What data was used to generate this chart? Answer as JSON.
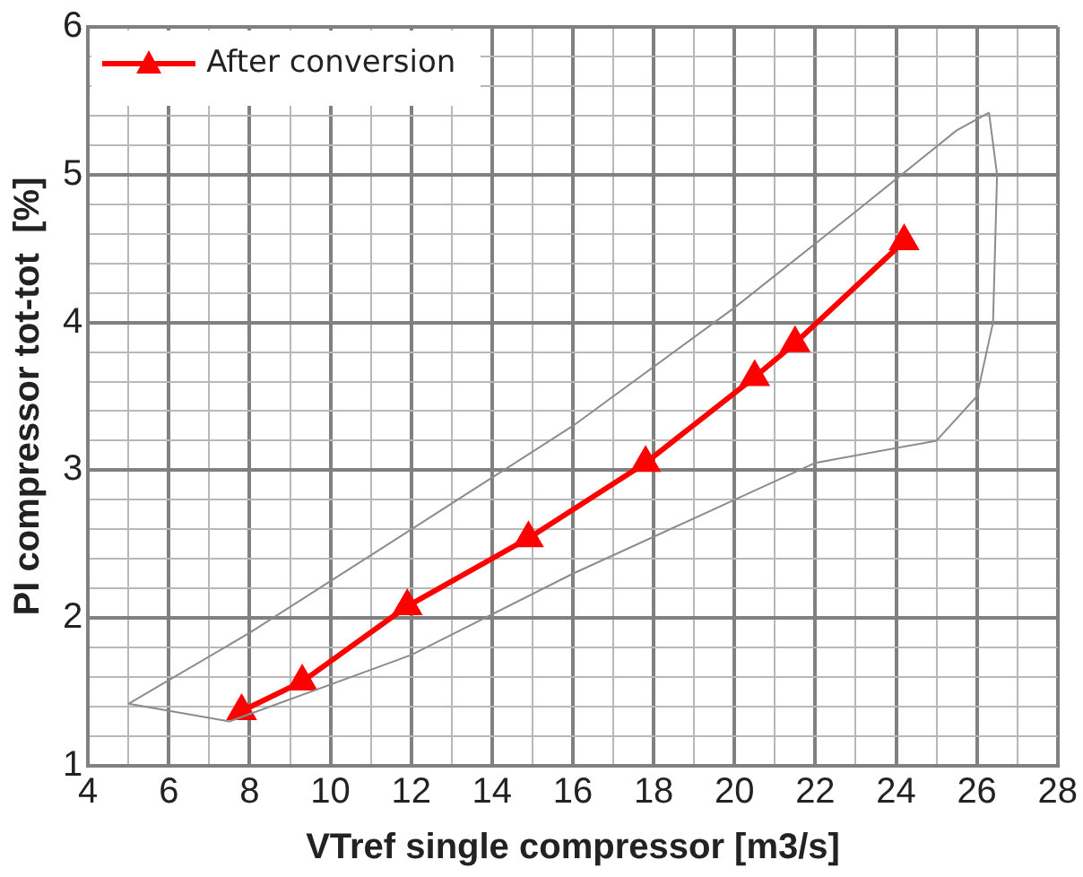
{
  "chart_data": {
    "type": "line",
    "xlabel": "VTref single compressor [m3/s]",
    "ylabel": "PI compressor tot-tot  [%]",
    "xlim": [
      4,
      28
    ],
    "ylim": [
      1,
      6
    ],
    "xticks": [
      4,
      {
        "value": 5,
        "label": null
      },
      6,
      {
        "value": 7,
        "label": null
      },
      8,
      {
        "value": 9,
        "label": null
      },
      10,
      {
        "value": 11,
        "label": null
      },
      12,
      {
        "value": 13,
        "label": null
      },
      14,
      {
        "value": 15,
        "label": null
      },
      16,
      {
        "value": 17,
        "label": null
      },
      18,
      {
        "value": 19,
        "label": null
      },
      20,
      {
        "value": 21,
        "label": null
      },
      22,
      {
        "value": 23,
        "label": null
      },
      24,
      {
        "value": 25,
        "label": null
      },
      26,
      {
        "value": 27,
        "label": null
      },
      28
    ],
    "yticks": [
      1,
      {
        "value": 1.2,
        "label": null
      },
      {
        "value": 1.4,
        "label": null
      },
      {
        "value": 1.6,
        "label": null
      },
      {
        "value": 1.8,
        "label": null
      },
      2,
      {
        "value": 2.2,
        "label": null
      },
      {
        "value": 2.4,
        "label": null
      },
      {
        "value": 2.6,
        "label": null
      },
      {
        "value": 2.8,
        "label": null
      },
      3,
      {
        "value": 3.2,
        "label": null
      },
      {
        "value": 3.4,
        "label": null
      },
      {
        "value": 3.6,
        "label": null
      },
      {
        "value": 3.8,
        "label": null
      },
      4,
      {
        "value": 4.2,
        "label": null
      },
      {
        "value": 4.4,
        "label": null
      },
      {
        "value": 4.6,
        "label": null
      },
      {
        "value": 4.8,
        "label": null
      },
      5,
      {
        "value": 5.2,
        "label": null
      },
      {
        "value": 5.4,
        "label": null
      },
      {
        "value": 5.6,
        "label": null
      },
      {
        "value": 5.8,
        "label": null
      },
      6
    ],
    "grid": true,
    "legend": "top left",
    "series": [
      {
        "color": "#8c8c8c",
        "marker": "none",
        "x": [
          5,
          8,
          12,
          16,
          20,
          23,
          25.5,
          26.3
        ],
        "values": [
          1.42,
          1.9,
          2.6,
          3.3,
          4.1,
          4.75,
          5.3,
          5.42
        ]
      },
      {
        "color": "#8c8c8c",
        "marker": "none",
        "x": [
          26.3,
          26.5,
          26.4,
          26
        ],
        "values": [
          5.42,
          5,
          4,
          3.5
        ]
      },
      {
        "color": "#8c8c8c",
        "marker": "none",
        "x": [
          5,
          7.5,
          12,
          16,
          20,
          22,
          25,
          26
        ],
        "values": [
          1.42,
          1.3,
          1.75,
          2.3,
          2.8,
          3.05,
          3.2,
          3.5
        ]
      },
      {
        "name": "After conversion",
        "color": "#ff0000",
        "marker": "triangle",
        "x": [
          7.8,
          9.3,
          11.9,
          14.9,
          17.8,
          20.5,
          21.5,
          24.2
        ],
        "values": [
          1.37,
          1.57,
          2.08,
          2.54,
          3.05,
          3.63,
          3.86,
          4.55
        ]
      }
    ]
  }
}
